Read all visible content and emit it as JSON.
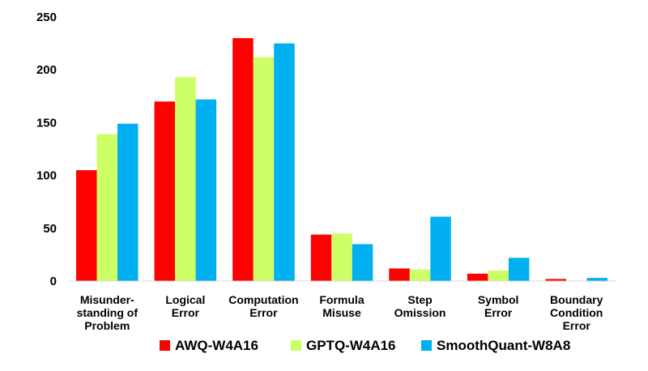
{
  "chart_data": {
    "type": "bar",
    "title": "",
    "xlabel": "",
    "ylabel": "",
    "ylim": [
      0,
      250
    ],
    "yticks": [
      0,
      50,
      100,
      150,
      200,
      250
    ],
    "grid": false,
    "legend_position": "bottom",
    "categories": [
      [
        "Misunder-",
        "standing of",
        "Problem"
      ],
      [
        "Logical",
        "Error"
      ],
      [
        "Computation",
        "Error"
      ],
      [
        "Formula",
        "Misuse"
      ],
      [
        "Step",
        "Omission"
      ],
      [
        "Symbol",
        "Error"
      ],
      [
        "Boundary",
        "Condition",
        "Error"
      ]
    ],
    "series": [
      {
        "name": "AWQ-W4A16",
        "color": "#ff0000",
        "values": [
          105,
          170,
          230,
          44,
          12,
          7,
          2
        ]
      },
      {
        "name": "GPTQ-W4A16",
        "color": "#ccff66",
        "values": [
          139,
          193,
          212,
          45,
          11,
          10,
          0
        ]
      },
      {
        "name": "SmoothQuant-W8A8",
        "color": "#00b0f0",
        "values": [
          149,
          172,
          225,
          35,
          61,
          22,
          3
        ]
      }
    ]
  }
}
